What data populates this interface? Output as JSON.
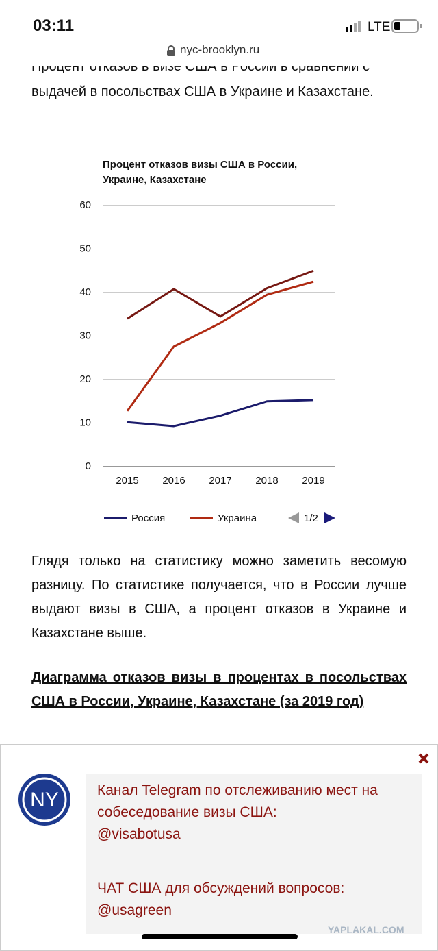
{
  "status_bar": {
    "time": "03:11",
    "network": "LTE",
    "url": "nyc-brooklyn.ru"
  },
  "article": {
    "intro_lines": [
      "Процент отказов в визе США в России в сравнении с",
      "выдачей в посольствах США в Украине и Казахстане."
    ],
    "paragraph": "Глядя только на статистику можно заметить весомую разницу. По статистике получается, что в России лучше выдают визы в США, а процент отказов в Украине и Казахстане выше.",
    "heading": "Диаграмма отказов визы в процентах в посольствах США в России, Украине, Казахстане (за 2019 год)"
  },
  "chart_data": {
    "type": "line",
    "title": "Процент отказов визы США в России, Украине, Казахстане",
    "categories": [
      "2015",
      "2016",
      "2017",
      "2018",
      "2019"
    ],
    "series": [
      {
        "name": "Россия",
        "color": "#1b1b6b",
        "values": [
          10.2,
          9.3,
          11.7,
          15,
          15.3
        ]
      },
      {
        "name": "Украина",
        "color": "#b02a12",
        "values": [
          12.8,
          27.6,
          33,
          39.5,
          42.5
        ]
      },
      {
        "color": "#761812",
        "values": [
          34,
          40.8,
          34.5,
          41,
          45
        ]
      }
    ],
    "ylim": [
      0,
      60
    ],
    "yticks": [
      0,
      10,
      20,
      30,
      40,
      50,
      60
    ],
    "grid": true,
    "legend_page": "1/2"
  },
  "popup": {
    "logo": "NY",
    "lines": [
      "Канал Telegram по отслеживанию мест на собеседование визы США:",
      "@visabotusa",
      "ЧАТ США для обсуждений вопросов:",
      "@usagreen"
    ]
  },
  "watermark": "YAPLAKAL.COM"
}
